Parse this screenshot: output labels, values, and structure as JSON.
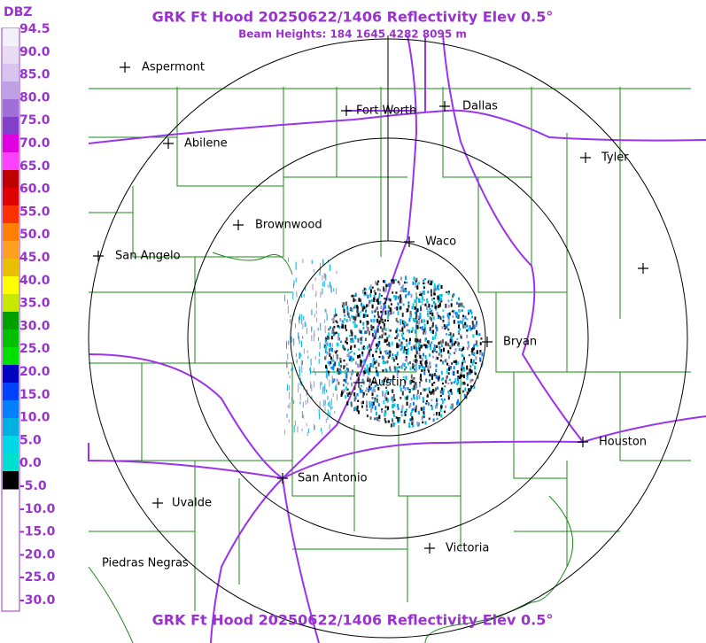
{
  "header": {
    "title": "GRK Ft Hood 20250622/1406 Reflectivity Elev 0.5°",
    "subtitle": "Beam Heights: 184 1645 4282 8095 m"
  },
  "footer": {
    "title": "GRK Ft Hood 20250622/1406 Reflectivity Elev 0.5°"
  },
  "legend": {
    "unit": "DBZ",
    "labels": [
      "94.5",
      "90.0",
      "85.0",
      "80.0",
      "75.0",
      "70.0",
      "65.0",
      "60.0",
      "55.0",
      "50.0",
      "45.0",
      "40.0",
      "35.0",
      "30.0",
      "25.0",
      "20.0",
      "15.0",
      "10.0",
      "5.0",
      "0.0",
      "-5.0",
      "-10.0",
      "-15.0",
      "-20.0",
      "-25.0",
      "-30.0"
    ]
  },
  "cities": [
    "Aspermont",
    "Abilene",
    "Fort Worth",
    "Dallas",
    "Tyler",
    "Brownwood",
    "Waco",
    "San Angelo",
    "Bryan",
    "Austin",
    "Houston",
    "San Antonio",
    "Uvalde",
    "Victoria",
    "Piedras Negras"
  ]
}
